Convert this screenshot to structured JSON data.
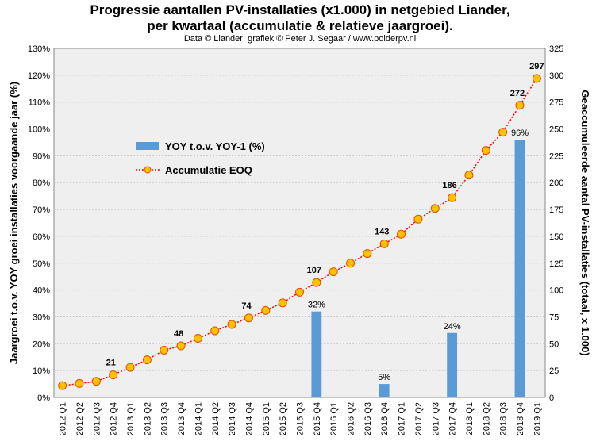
{
  "chart_data": {
    "type": "bar+line",
    "title_line1": "Progressie aantallen PV-installaties  (x1.000) in netgebied Liander,",
    "title_line2": "per kwartaal (accumulatie  & relatieve jaargroei).",
    "subtitle": "Data © Liander; grafiek © Peter J. Segaar / www.polderpv.nl",
    "ylabel_left": "Jaargroei t.o.v. YOY groei installaties voorgaande jaar (%)",
    "ylabel_right": "Geaccumuleerde aantal PV-installaties (totaal, x 1.000)",
    "ylim_left": [
      0,
      130
    ],
    "ylim_right": [
      0,
      325
    ],
    "left_ticks": [
      "0%",
      "10%",
      "20%",
      "30%",
      "40%",
      "50%",
      "60%",
      "70%",
      "80%",
      "90%",
      "100%",
      "110%",
      "120%",
      "130%"
    ],
    "right_ticks": [
      "0",
      "25",
      "50",
      "75",
      "100",
      "125",
      "150",
      "175",
      "200",
      "225",
      "250",
      "275",
      "300",
      "325"
    ],
    "grid": true,
    "legend_position": "upper-left",
    "categories": [
      "2012 Q1",
      "2012 Q2",
      "2012 Q3",
      "2012 Q4",
      "2013 Q1",
      "2013 Q2",
      "2013 Q3",
      "2013 Q4",
      "2014 Q1",
      "2014 Q2",
      "2014 Q3",
      "2014 Q4",
      "2015 Q1",
      "2015 Q2",
      "2015 Q3",
      "2015 Q4",
      "2016 Q1",
      "2016 Q2",
      "2016 Q3",
      "2016 Q4",
      "2017 Q1",
      "2017 Q2",
      "2017 Q3",
      "2017 Q4",
      "2018 Q1",
      "2018 Q2",
      "2018 Q3",
      "2018 Q4",
      "2019 Q1"
    ],
    "series": [
      {
        "name": "YOY t.o.v. YOY-1 (%)",
        "type": "bar",
        "axis": "left",
        "color": "#5b9bd5",
        "values": [
          null,
          null,
          null,
          null,
          null,
          null,
          null,
          null,
          null,
          null,
          null,
          null,
          null,
          null,
          null,
          32,
          null,
          null,
          null,
          5,
          null,
          null,
          null,
          24,
          null,
          null,
          null,
          96,
          null
        ],
        "labels": [
          "",
          "",
          "",
          "",
          "",
          "",
          "",
          "",
          "",
          "",
          "",
          "",
          "",
          "",
          "",
          "32%",
          "",
          "",
          "",
          "5%",
          "",
          "",
          "",
          "24%",
          "",
          "",
          "",
          "96%",
          ""
        ]
      },
      {
        "name": "Accumulatie EOQ",
        "type": "line",
        "axis": "right",
        "color": "#ff0000",
        "marker_color": "#ffc000",
        "values": [
          11,
          13,
          15,
          21,
          28,
          35,
          44,
          48,
          55,
          62,
          68,
          74,
          81,
          88,
          98,
          107,
          117,
          125,
          134,
          143,
          152,
          166,
          176,
          186,
          207,
          230,
          247,
          272,
          297
        ],
        "labels": [
          "",
          "",
          "",
          "21",
          "",
          "",
          "",
          "48",
          "",
          "",
          "",
          "74",
          "",
          "",
          "",
          "107",
          "",
          "",
          "",
          "143",
          "",
          "",
          "",
          "186",
          "",
          "",
          "",
          "272",
          "297"
        ]
      }
    ]
  }
}
